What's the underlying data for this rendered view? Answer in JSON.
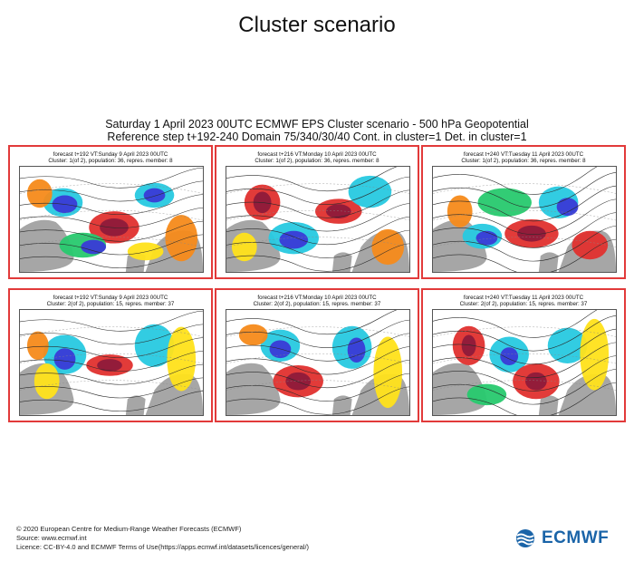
{
  "page": {
    "title": "Cluster scenario",
    "subtitle_line1": "Saturday 1 April 2023 00UTC ECMWF EPS Cluster scenario - 500 hPa Geopotential",
    "subtitle_line2": "Reference step t+192-240 Domain 75/340/30/40 Cont. in cluster=1 Det. in cluster=1"
  },
  "panels": [
    {
      "line1": "forecast t+192 VT:Sunday 9 April 2023 00UTC",
      "line2": "Cluster: 1(of 2), population: 36, repres. member: 8"
    },
    {
      "line1": "forecast t+216 VT:Monday 10 April 2023 00UTC",
      "line2": "Cluster: 1(of 2), population: 36, repres. member: 8"
    },
    {
      "line1": "forecast t+240 VT:Tuesday 11 April 2023 00UTC",
      "line2": "Cluster: 1(of 2), population: 36, repres. member: 8"
    },
    {
      "line1": "forecast t+192 VT:Sunday 9 April 2023 00UTC",
      "line2": "Cluster: 2(of 2), population: 15, repres. member: 37"
    },
    {
      "line1": "forecast t+216 VT:Monday 10 April 2023 00UTC",
      "line2": "Cluster: 2(of 2), population: 15, repres. member: 37"
    },
    {
      "line1": "forecast t+240 VT:Tuesday 11 April 2023 00UTC",
      "line2": "Cluster: 2(of 2), population: 15, repres. member: 37"
    }
  ],
  "footer": {
    "copyright": "© 2020 European Centre for Medium-Range Weather Forecasts (ECMWF)",
    "source": "Source: www.ecmwf.int",
    "licence": "Licence: CC-BY-4.0 and ECMWF Terms of Use(https://apps.ecmwf.int/datasets/licences/general/)"
  },
  "logo": {
    "text": "ECMWF",
    "icon": "ecmwf-wave-icon"
  },
  "colors": {
    "panel_border": "#e23a3a",
    "land": "#a6a6a6",
    "negative_strong": "#3a3ad6",
    "negative_mid": "#27c9e0",
    "negative_weak": "#27c96e",
    "positive_weak": "#ffe21a",
    "positive_mid": "#f58a1a",
    "positive_strong": "#e0302e",
    "positive_extreme": "#8e1a3a",
    "brand": "#1a64a8"
  }
}
